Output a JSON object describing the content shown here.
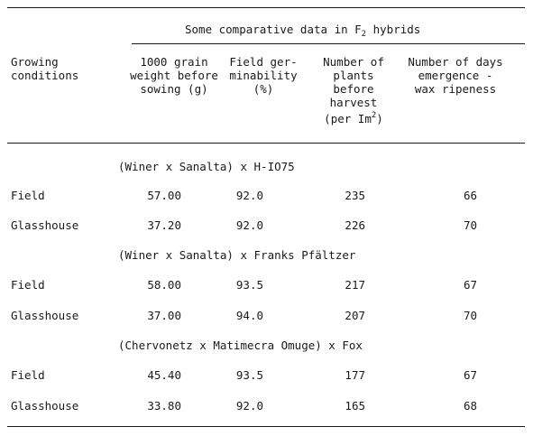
{
  "header": {
    "span_title_pre": "Some comparative data in F",
    "span_title_sub": "2",
    "span_title_post": " hybrids",
    "col_growing": "Growing conditions",
    "col_grain": "1000 grain weight before sowing (g)",
    "col_germ": "Field ger- minability (%)",
    "col_plants_pre": "Number of plants before harvest (per Im",
    "col_plants_sup": "2",
    "col_plants_post": ")",
    "col_days": "Number of days emergence - wax ripeness"
  },
  "groups": [
    {
      "title": "(Winer x Sanalta) x H-IO75",
      "rows": [
        {
          "condition": "Field",
          "grain": "57.00",
          "germ": "92.0",
          "plants": "235",
          "days": "66"
        },
        {
          "condition": "Glasshouse",
          "grain": "37.20",
          "germ": "92.0",
          "plants": "226",
          "days": "70"
        }
      ]
    },
    {
      "title": "(Winer x Sanalta) x Franks Pfältzer",
      "rows": [
        {
          "condition": "Field",
          "grain": "58.00",
          "germ": "93.5",
          "plants": "217",
          "days": "67"
        },
        {
          "condition": "Glasshouse",
          "grain": "37.00",
          "germ": "94.0",
          "plants": "207",
          "days": "70"
        }
      ]
    },
    {
      "title": "(Chervonetz x Matimecra Omuge) x Fox",
      "rows": [
        {
          "condition": "Field",
          "grain": "45.40",
          "germ": "93.5",
          "plants": "177",
          "days": "67"
        },
        {
          "condition": "Glasshouse",
          "grain": "33.80",
          "germ": "92.0",
          "plants": "165",
          "days": "68"
        }
      ]
    }
  ]
}
